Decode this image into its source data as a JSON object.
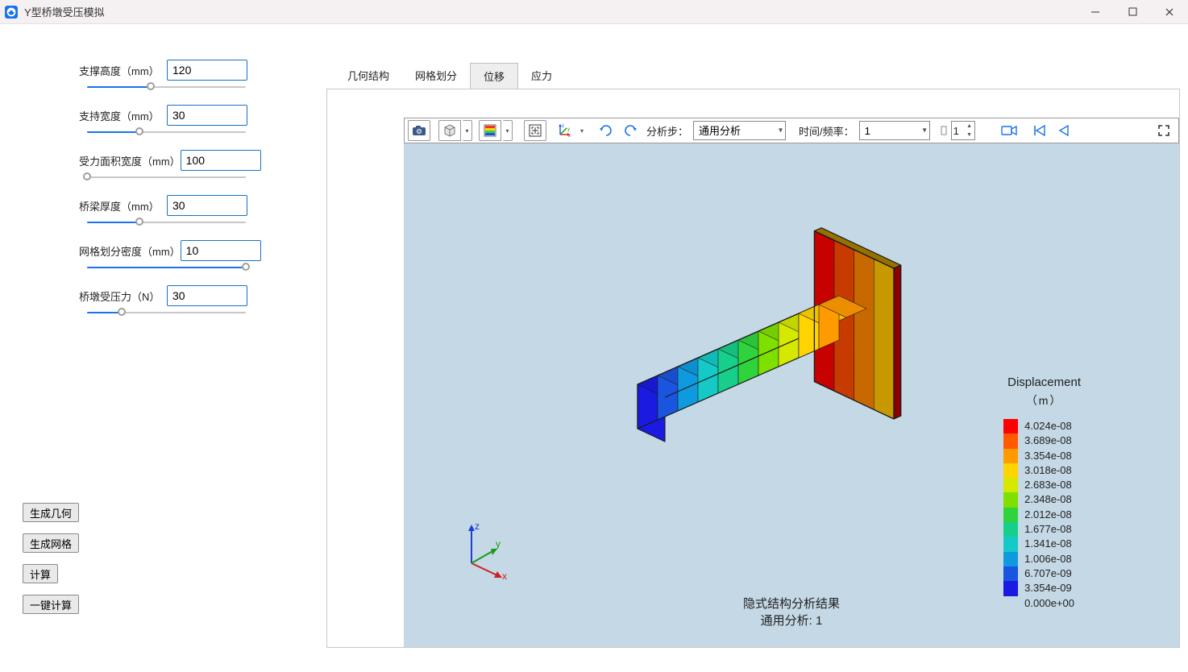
{
  "window": {
    "title": "Y型桥墩受压模拟"
  },
  "params": [
    {
      "label": "支撑高度（mm）",
      "value": "120",
      "slider_pct": 40
    },
    {
      "label": "支持宽度（mm）",
      "value": "30",
      "slider_pct": 33
    },
    {
      "label": "受力面积宽度（mm）",
      "value": "100",
      "slider_pct": 0
    },
    {
      "label": "桥梁厚度（mm）",
      "value": "30",
      "slider_pct": 33
    },
    {
      "label": "网格划分密度（mm）",
      "value": "10",
      "slider_pct": 100
    },
    {
      "label": "桥墩受压力（N）",
      "value": "30",
      "slider_pct": 22
    }
  ],
  "action_buttons": [
    {
      "name": "btn-gen-geometry",
      "label": "生成几何"
    },
    {
      "name": "btn-gen-mesh",
      "label": "生成网格"
    },
    {
      "name": "btn-compute",
      "label": "计算"
    },
    {
      "name": "btn-one-click",
      "label": "一键计算"
    }
  ],
  "tabs": [
    {
      "label": "几何结构",
      "active": false
    },
    {
      "label": "网格划分",
      "active": false
    },
    {
      "label": "位移",
      "active": true
    },
    {
      "label": "应力",
      "active": false
    }
  ],
  "toolbar": {
    "step_label": "分析步：",
    "step_value": "通用分析",
    "time_label": "时间/频率：",
    "time_value": "1",
    "frame_value": "1"
  },
  "result_caption": {
    "line1": "隐式结构分析结果",
    "line2": "通用分析: 1"
  },
  "legend": {
    "title": "Displacement",
    "unit": "（m）",
    "colors": [
      "#ff0000",
      "#ff5a00",
      "#ff9a00",
      "#ffd400",
      "#d4e800",
      "#7fe000",
      "#2fd43c",
      "#17cf8a",
      "#15c9c7",
      "#0f9ae0",
      "#1a55e0",
      "#1a1ae0"
    ],
    "values": [
      "4.024e-08",
      "3.689e-08",
      "3.354e-08",
      "3.018e-08",
      "2.683e-08",
      "2.348e-08",
      "2.012e-08",
      "1.677e-08",
      "1.341e-08",
      "1.006e-08",
      "6.707e-09",
      "3.354e-09",
      "0.000e+00"
    ]
  },
  "triad": {
    "x": "x",
    "y": "y",
    "z": "z"
  },
  "model": {
    "band_colors": [
      "#1a1ae0",
      "#1a55e0",
      "#0f9ae0",
      "#15c9c7",
      "#17cf8a",
      "#2fd43c",
      "#7fe000",
      "#d4e800",
      "#ffd400",
      "#ff9a00"
    ],
    "back_colors": [
      "#c79800",
      "#c76800",
      "#c73a00",
      "#c70000"
    ],
    "edge_color": "#1a1a1a"
  }
}
